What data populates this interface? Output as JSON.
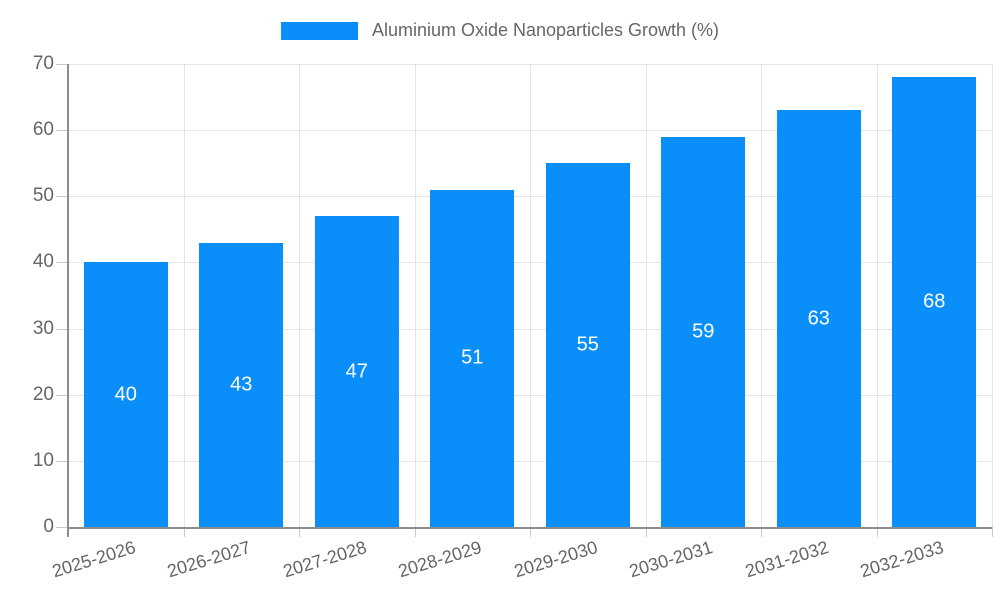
{
  "chart_data": {
    "type": "bar",
    "title": "Aluminium Oxide Nanoparticles Growth (%)",
    "legend": {
      "entries": [
        "Aluminium Oxide Nanoparticles Growth (%)"
      ],
      "position": "top"
    },
    "categories": [
      "2025-2026",
      "2026-2027",
      "2027-2028",
      "2028-2029",
      "2029-2030",
      "2030-2031",
      "2031-2032",
      "2032-2033"
    ],
    "values": [
      40,
      43,
      47,
      51,
      55,
      59,
      63,
      68
    ],
    "y_ticks": [
      0,
      10,
      20,
      30,
      40,
      50,
      60,
      70
    ],
    "ylim": [
      0,
      70
    ],
    "xlabel": "",
    "ylabel": "",
    "grid": true,
    "bar_color": "#0a8ef9",
    "bar_label_color": "#ffffff",
    "axis_text_color": "#666666",
    "gridline_color": "#e5e5e5",
    "axis_line_color": "#8c8c8c"
  }
}
